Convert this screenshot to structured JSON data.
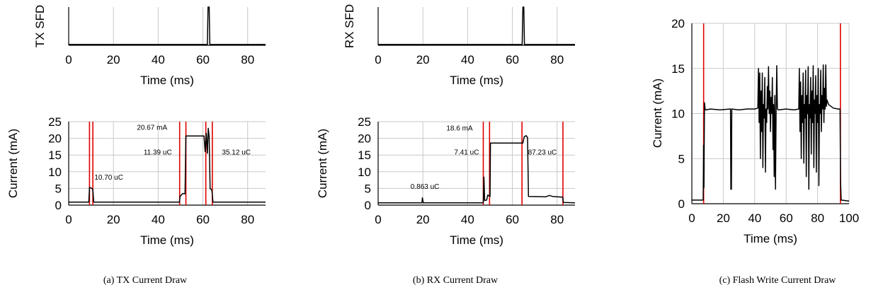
{
  "colors": {
    "trace": "#000000",
    "marker": "#e00000",
    "grid": "#c8c8c8"
  },
  "captions": [
    "(a) TX Current Draw",
    "(b) RX Current Draw",
    "(c) Flash Write Current Draw"
  ],
  "chart_data": [
    {
      "id": "tx_sfd",
      "type": "line",
      "xlabel": "Time (ms)",
      "ylabel": "TX SFD",
      "xlim": [
        0,
        88
      ],
      "ylim": [
        0,
        1
      ],
      "xticks": [
        0,
        20,
        40,
        60,
        80
      ],
      "yticks": [],
      "grid": "vertical",
      "series": [
        {
          "values": [
            [
              0,
              0.02
            ],
            [
              62,
              0.02
            ],
            [
              62.3,
              1
            ],
            [
              62.8,
              1
            ],
            [
              63.1,
              0.02
            ],
            [
              88,
              0.02
            ]
          ]
        }
      ],
      "markers": [],
      "annotations": []
    },
    {
      "id": "tx_current",
      "type": "line",
      "xlabel": "Time (ms)",
      "ylabel": "Current (mA)",
      "xlim": [
        0,
        88
      ],
      "ylim": [
        0,
        25
      ],
      "xticks": [
        0,
        20,
        40,
        60,
        80
      ],
      "yticks": [
        0,
        5,
        10,
        15,
        20,
        25
      ],
      "grid": "both",
      "series": [
        {
          "values": [
            [
              0,
              0.9
            ],
            [
              9,
              0.9
            ],
            [
              9.3,
              5.3
            ],
            [
              10.4,
              5.0
            ],
            [
              10.8,
              4.6
            ],
            [
              11.2,
              0.9
            ],
            [
              49.5,
              0.9
            ],
            [
              49.8,
              2.6
            ],
            [
              51,
              3.5
            ],
            [
              52,
              3.4
            ],
            [
              52.4,
              20.7
            ],
            [
              60.5,
              20.7
            ],
            [
              61,
              16
            ],
            [
              61.5,
              21.5
            ],
            [
              62,
              15.5
            ],
            [
              62.4,
              23
            ],
            [
              62.8,
              20.5
            ],
            [
              63.2,
              5
            ],
            [
              64,
              4.5
            ],
            [
              64.5,
              0.9
            ],
            [
              88,
              0.9
            ]
          ]
        }
      ],
      "markers": [
        9.3,
        10.8,
        49.6,
        52.4,
        61.3,
        64.2
      ],
      "annotations": [
        {
          "text": "10.70 uC",
          "x": 11.5,
          "y": 7.6
        },
        {
          "text": "20.67 mA",
          "x": 30.5,
          "y": 22.6
        },
        {
          "text": "11.39 uC",
          "x": 33.5,
          "y": 15.2
        },
        {
          "text": "35.12 uC",
          "x": 68.5,
          "y": 15.2
        }
      ]
    },
    {
      "id": "rx_sfd",
      "type": "line",
      "xlabel": "Time (ms)",
      "ylabel": "RX SFD",
      "xlim": [
        0,
        88
      ],
      "ylim": [
        0,
        1
      ],
      "xticks": [
        0,
        20,
        40,
        60,
        80
      ],
      "yticks": [],
      "grid": "vertical",
      "series": [
        {
          "values": [
            [
              0,
              0.02
            ],
            [
              64.4,
              0.02
            ],
            [
              64.7,
              1
            ],
            [
              65.1,
              1
            ],
            [
              65.4,
              0.02
            ],
            [
              88,
              0.02
            ]
          ]
        }
      ],
      "markers": [],
      "annotations": []
    },
    {
      "id": "rx_current",
      "type": "line",
      "xlabel": "Time (ms)",
      "ylabel": "Current (mA)",
      "xlim": [
        0,
        88
      ],
      "ylim": [
        0,
        25
      ],
      "xticks": [
        0,
        20,
        40,
        60,
        80
      ],
      "yticks": [
        0,
        5,
        10,
        15,
        20,
        25
      ],
      "grid": "both",
      "series": [
        {
          "values": [
            [
              0,
              0.7
            ],
            [
              19.6,
              0.7
            ],
            [
              19.8,
              2.2
            ],
            [
              20.2,
              0.7
            ],
            [
              47,
              0.7
            ],
            [
              47.3,
              8.4
            ],
            [
              47.6,
              1.4
            ],
            [
              48.5,
              1.5
            ],
            [
              49,
              3.0
            ],
            [
              50,
              2.6
            ],
            [
              50.2,
              18.6
            ],
            [
              64.7,
              18.6
            ],
            [
              65.3,
              20.5
            ],
            [
              66.2,
              20.8
            ],
            [
              66.8,
              20.2
            ],
            [
              67.2,
              2.6
            ],
            [
              75,
              2.5
            ],
            [
              76.5,
              2.9
            ],
            [
              78,
              2.6
            ],
            [
              82.5,
              2.4
            ],
            [
              82.8,
              0.8
            ],
            [
              88,
              0.7
            ]
          ]
        }
      ],
      "markers": [
        47.0,
        49.8,
        64.3,
        82.6
      ],
      "annotations": [
        {
          "text": "0.863 uC",
          "x": 14.5,
          "y": 4.9
        },
        {
          "text": "18.6 mA",
          "x": 30.5,
          "y": 22.3
        },
        {
          "text": "7.41 uC",
          "x": 34,
          "y": 15.2
        },
        {
          "text": "87.23 uC",
          "x": 67,
          "y": 15.2
        }
      ]
    },
    {
      "id": "flash_current",
      "type": "line",
      "xlabel": "Time (ms)",
      "ylabel": "Current (mA)",
      "xlim": [
        0,
        100
      ],
      "ylim": [
        0,
        20
      ],
      "xticks": [
        0,
        20,
        40,
        60,
        80,
        100
      ],
      "yticks": [
        0,
        5,
        10,
        15,
        20
      ],
      "grid": "both",
      "series": [
        {
          "values": [
            [
              0,
              0.4
            ],
            [
              7.2,
              0.4
            ],
            [
              7.5,
              6.5
            ],
            [
              7.7,
              1.8
            ],
            [
              8,
              11.2
            ],
            [
              8.5,
              10.4
            ],
            [
              12,
              10.5
            ],
            [
              18,
              10.4
            ],
            [
              24,
              10.5
            ],
            [
              24.6,
              10.5
            ],
            [
              24.8,
              1.6
            ],
            [
              25.2,
              1.6
            ],
            [
              25.4,
              10.5
            ],
            [
              30,
              10.4
            ],
            [
              35,
              10.5
            ],
            [
              40,
              10.5
            ],
            [
              42,
              10.6
            ],
            [
              42.4,
              15
            ],
            [
              42.8,
              9
            ],
            [
              43.2,
              14.5
            ],
            [
              43.6,
              5
            ],
            [
              44,
              12.5
            ],
            [
              44.4,
              8
            ],
            [
              44.8,
              14.5
            ],
            [
              45.2,
              4
            ],
            [
              45.6,
              11
            ],
            [
              46,
              9.5
            ],
            [
              46.4,
              14
            ],
            [
              46.8,
              3.5
            ],
            [
              47.2,
              10.5
            ],
            [
              47.6,
              9
            ],
            [
              48,
              13
            ],
            [
              48.4,
              10.5
            ],
            [
              48.8,
              15.2
            ],
            [
              49.2,
              10
            ],
            [
              49.6,
              12.5
            ],
            [
              50,
              8
            ],
            [
              50.4,
              11.8
            ],
            [
              50.8,
              10
            ],
            [
              51.2,
              14
            ],
            [
              51.6,
              6
            ],
            [
              52,
              11
            ],
            [
              52.4,
              3
            ],
            [
              52.8,
              12
            ],
            [
              53.2,
              1.6
            ],
            [
              53.6,
              10
            ],
            [
              54,
              15.3
            ],
            [
              54.4,
              10.5
            ],
            [
              55,
              10.4
            ],
            [
              60,
              10.5
            ],
            [
              65,
              10.4
            ],
            [
              68,
              10.5
            ],
            [
              68.4,
              15
            ],
            [
              68.8,
              8
            ],
            [
              69.2,
              13.5
            ],
            [
              69.6,
              5
            ],
            [
              70,
              12
            ],
            [
              70.4,
              9
            ],
            [
              70.8,
              14.5
            ],
            [
              71.2,
              4.5
            ],
            [
              71.6,
              11
            ],
            [
              72,
              9.5
            ],
            [
              72.4,
              14.8
            ],
            [
              72.8,
              3
            ],
            [
              73.2,
              12
            ],
            [
              73.6,
              10
            ],
            [
              74,
              15.2
            ],
            [
              74.4,
              1.6
            ],
            [
              74.8,
              11
            ],
            [
              75.2,
              9.5
            ],
            [
              75.6,
              14
            ],
            [
              76,
              5.5
            ],
            [
              76.4,
              12.5
            ],
            [
              76.8,
              9
            ],
            [
              77.2,
              15.3
            ],
            [
              77.6,
              4
            ],
            [
              78,
              11.5
            ],
            [
              78.4,
              10
            ],
            [
              78.8,
              14.2
            ],
            [
              79.2,
              3.5
            ],
            [
              79.6,
              12
            ],
            [
              80,
              9
            ],
            [
              80.4,
              15
            ],
            [
              80.8,
              2
            ],
            [
              81.2,
              11
            ],
            [
              81.6,
              10
            ],
            [
              82,
              14.8
            ],
            [
              82.4,
              8
            ],
            [
              82.8,
              12
            ],
            [
              83.2,
              10.5
            ],
            [
              83.6,
              15.4
            ],
            [
              84,
              9
            ],
            [
              84.4,
              12.8
            ],
            [
              84.8,
              10.5
            ],
            [
              85.2,
              15.4
            ],
            [
              85.6,
              10.8
            ],
            [
              86,
              11.5
            ],
            [
              87,
              11
            ],
            [
              90,
              10.6
            ],
            [
              93,
              10.5
            ],
            [
              94.3,
              10.5
            ],
            [
              94.6,
              2.5
            ],
            [
              95,
              0.4
            ],
            [
              100,
              0.3
            ]
          ]
        }
      ],
      "markers": [
        7.5,
        94.5
      ],
      "annotations": []
    }
  ]
}
